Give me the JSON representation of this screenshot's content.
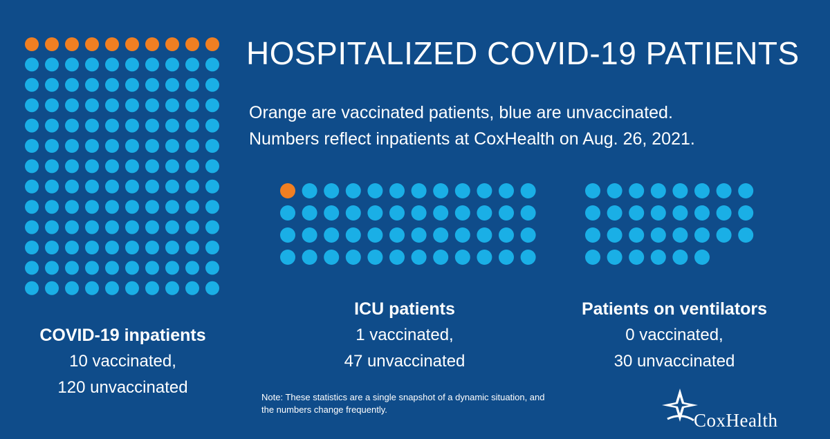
{
  "title": "HOSPITALIZED COVID-19 PATIENTS",
  "subtitle": {
    "line1": "Orange are vaccinated patients, blue are unvaccinated.",
    "line2": "Numbers reflect inpatients at CoxHealth on Aug. 26, 2021."
  },
  "colors": {
    "background": "#0f4c8a",
    "vaccinated": "#f07f22",
    "unvaccinated": "#1aafe6"
  },
  "chart_data": [
    {
      "type": "bar",
      "title": "COVID-19 inpatients",
      "categories": [
        "vaccinated",
        "unvaccinated"
      ],
      "values": [
        10,
        120
      ],
      "labels": [
        "10 vaccinated,",
        "120 unvaccinated"
      ]
    },
    {
      "type": "bar",
      "title": "ICU patients",
      "categories": [
        "vaccinated",
        "unvaccinated"
      ],
      "values": [
        1,
        47
      ],
      "labels": [
        "1 vaccinated,",
        "47 unvaccinated"
      ]
    },
    {
      "type": "bar",
      "title": "Patients on ventilators",
      "categories": [
        "vaccinated",
        "unvaccinated"
      ],
      "values": [
        0,
        30
      ],
      "labels": [
        "0 vaccinated,",
        "30 unvaccinated"
      ]
    }
  ],
  "note": {
    "line1": "Note: These statistics are a single snapshot of a dynamic situation, and",
    "line2": "the numbers change frequently."
  },
  "logo": {
    "text": "CoxHealth",
    "icon": "star-logo-icon"
  }
}
